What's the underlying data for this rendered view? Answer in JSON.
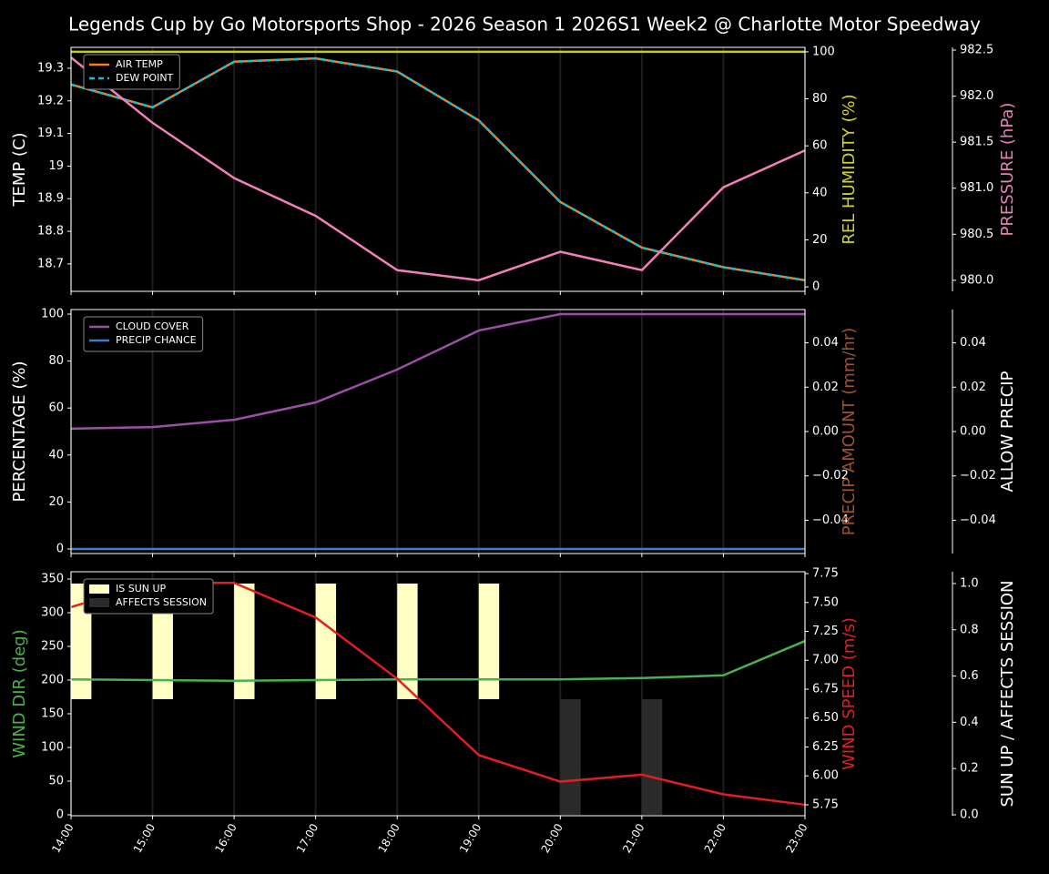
{
  "chart_data": [
    {
      "type": "line",
      "title": "Legends Cup by Go Motorsports Shop - 2026 Season 1 2026S1 Week2 @ Charlotte Motor Speedway",
      "grid": true,
      "ylabel": "TEMP (C)",
      "ylabel_color": "#ffffff",
      "ylim": [
        18.616,
        19.364
      ],
      "yticks": [
        18.7,
        18.8,
        18.9,
        19.0,
        19.1,
        19.2,
        19.3
      ],
      "y2label": "REL HUMIDITY (%)",
      "y2label_color": "#d4d41c",
      "y2lim": [
        -1.9,
        101.9
      ],
      "y2ticks": [
        0,
        20,
        40,
        60,
        80,
        100
      ],
      "y3label": "PRESSURE (hPa)",
      "y3label_color": "#e87fb8",
      "y3lim": [
        979.88,
        982.53
      ],
      "y3ticks": [
        {
          "value": 980,
          "label": "980.0"
        },
        980.5,
        {
          "value": 981,
          "label": "981.0"
        },
        981.5,
        {
          "value": 982,
          "label": "982.0"
        },
        982.5
      ],
      "series": [
        {
          "name": "AIR TEMP",
          "color": "#ff7f0e",
          "axis": "y",
          "values": [
            19.25,
            19.18,
            19.32,
            19.33,
            19.29,
            19.14,
            18.89,
            18.75,
            18.69,
            18.65
          ]
        },
        {
          "name": "DEW POINT",
          "color": "#17becf",
          "axis": "y",
          "dash": true,
          "values": [
            19.25,
            19.18,
            19.32,
            19.33,
            19.29,
            19.14,
            18.89,
            18.75,
            18.69,
            18.65
          ]
        },
        {
          "color": "#cccc00",
          "axis": "y2",
          "values": [
            100,
            100,
            100,
            100,
            100,
            100,
            100,
            100,
            100,
            100
          ]
        },
        {
          "color": "#f080b8",
          "axis": "y3",
          "values": [
            982.42,
            981.71,
            981.11,
            980.7,
            980.11,
            980.0,
            980.31,
            980.11,
            981.01,
            981.41
          ]
        }
      ]
    },
    {
      "type": "line",
      "grid": true,
      "ylabel": "PERCENTAGE (%)",
      "ylabel_color": "#ffffff",
      "ylim": [
        -1.94,
        101.94
      ],
      "yticks": [
        0,
        20,
        40,
        60,
        80,
        100
      ],
      "y2label": "PRECIP AMOUNT (mm/hr)",
      "y2label_color": "#a0522d",
      "y2lim": [
        -0.055,
        0.055
      ],
      "y2ticks": [
        {
          "value": -0.04,
          "label": "−0.04"
        },
        {
          "value": -0.02,
          "label": "−0.02"
        },
        {
          "value": 0,
          "label": "0.00"
        },
        0.02,
        0.04
      ],
      "y3label": "ALLOW PRECIP",
      "y3label_color": "#ffffff",
      "y3lim": [
        -0.055,
        0.055
      ],
      "y3ticks": [
        {
          "value": -0.04,
          "label": "−0.04"
        },
        {
          "value": -0.02,
          "label": "−0.02"
        },
        {
          "value": 0,
          "label": "0.00"
        },
        0.02,
        0.04
      ],
      "series": [
        {
          "name": "CLOUD COVER",
          "color": "#9b4fa6",
          "axis": "y",
          "values": [
            51.2,
            51.9,
            55.0,
            62.4,
            76.4,
            93.0,
            100,
            100,
            100,
            100
          ]
        },
        {
          "name": "PRECIP CHANCE",
          "color": "#3b7fc4",
          "axis": "y",
          "values": [
            0,
            0,
            0,
            0,
            0,
            0,
            0,
            0,
            0,
            0
          ]
        }
      ]
    },
    {
      "type": "line",
      "grid": true,
      "categories": [
        "14:00",
        "15:00",
        "16:00",
        "17:00",
        "18:00",
        "19:00",
        "20:00",
        "21:00",
        "22:00",
        "23:00"
      ],
      "ylabel": "WIND DIR (deg)",
      "ylabel_color": "#4caf50",
      "ylim": [
        -1.4,
        360.8
      ],
      "yticks": [
        0,
        50,
        100,
        150,
        200,
        250,
        300,
        350
      ],
      "y2label": "WIND SPEED (m/s)",
      "y2label_color": "#e02020",
      "y2lim": [
        5.655,
        7.766
      ],
      "y2ticks": [
        5.75,
        {
          "value": 6,
          "label": "6.00"
        },
        6.25,
        {
          "value": 6.5,
          "label": "6.50"
        },
        6.75,
        {
          "value": 7,
          "label": "7.00"
        },
        7.25,
        {
          "value": 7.5,
          "label": "7.50"
        },
        7.75
      ],
      "y3label": "SUN UP / AFFECTS SESSION",
      "y3label_color": "#ffffff",
      "y3lim": [
        -0.004,
        1.051
      ],
      "y3ticks": [
        {
          "value": 0,
          "label": "0.0"
        },
        0.2,
        0.4,
        0.6,
        0.8,
        {
          "value": 1,
          "label": "1.0"
        }
      ],
      "series": [
        {
          "name": "IS SUN UP",
          "color": "#ffffc4",
          "axis": "y3",
          "type": "bar",
          "bottom": 0.5,
          "values": [
            1,
            1,
            1,
            1,
            1,
            1,
            0,
            0,
            0,
            0
          ]
        },
        {
          "name": "AFFECTS SESSION",
          "color": "#2b2b2b",
          "axis": "y3",
          "type": "bar",
          "values": [
            0,
            0,
            0,
            0,
            0,
            0,
            0.5,
            0.5,
            0,
            0
          ]
        },
        {
          "color": "#4caf50",
          "axis": "y",
          "values": [
            201,
            200,
            199,
            200,
            201,
            201,
            201,
            203,
            207,
            258
          ]
        },
        {
          "color": "#e02020",
          "axis": "y2",
          "values": [
            7.46,
            7.67,
            7.67,
            7.37,
            6.84,
            6.18,
            5.95,
            6.01,
            5.84,
            5.75
          ]
        }
      ]
    }
  ]
}
